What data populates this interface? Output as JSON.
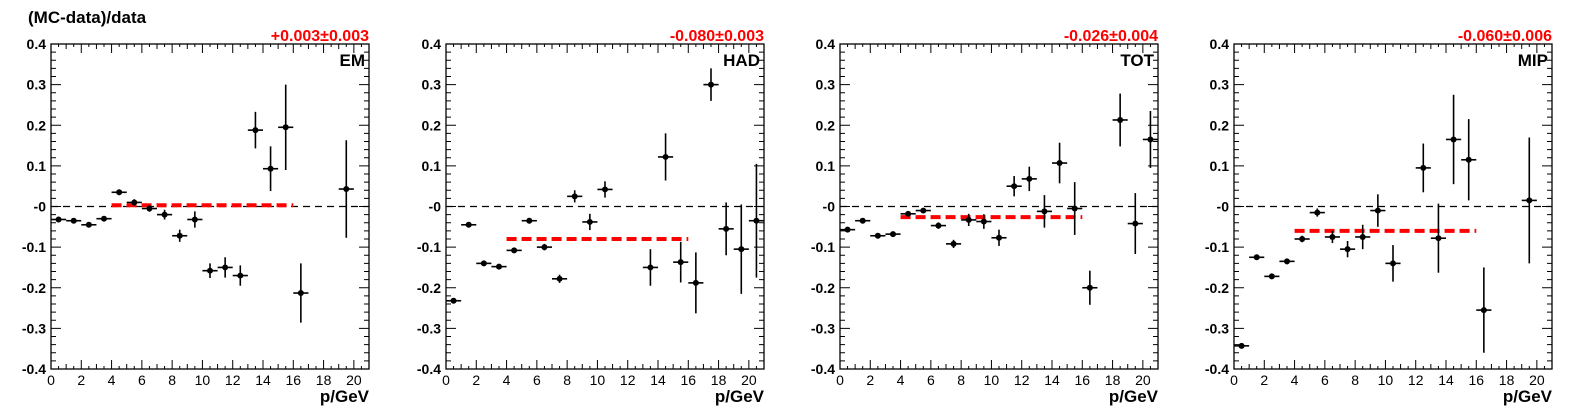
{
  "figure": {
    "ylabel": "(MC-data)/data"
  },
  "chart_data": [
    {
      "type": "scatter",
      "label": "EM",
      "fit_label": "+0.003±0.003",
      "fit": {
        "value": 0.003,
        "x_range": [
          4,
          16
        ]
      },
      "xlabel": "p/GeV",
      "xlim": [
        0,
        21
      ],
      "ylim": [
        -0.4,
        0.4
      ],
      "x_ticks": [
        0,
        2,
        4,
        6,
        8,
        10,
        12,
        14,
        16,
        18,
        20
      ],
      "y_ticks": [
        -0.4,
        -0.3,
        -0.2,
        -0.1,
        0,
        0.1,
        0.2,
        0.3,
        0.4
      ],
      "y_tick_labels": [
        "-0.4",
        "-0.3",
        "-0.2",
        "-0.1",
        "-0",
        "0.1",
        "0.2",
        "0.3",
        "0.4"
      ],
      "reference_line": 0,
      "points": [
        {
          "x": 0.5,
          "y": -0.032,
          "err": 0.005
        },
        {
          "x": 1.5,
          "y": -0.035,
          "err": 0.005
        },
        {
          "x": 2.5,
          "y": -0.045,
          "err": 0.006
        },
        {
          "x": 3.5,
          "y": -0.03,
          "err": 0.006
        },
        {
          "x": 4.5,
          "y": 0.035,
          "err": 0.007
        },
        {
          "x": 5.5,
          "y": 0.01,
          "err": 0.008
        },
        {
          "x": 6.5,
          "y": -0.005,
          "err": 0.008
        },
        {
          "x": 7.5,
          "y": -0.02,
          "err": 0.012
        },
        {
          "x": 8.5,
          "y": -0.072,
          "err": 0.015
        },
        {
          "x": 9.5,
          "y": -0.032,
          "err": 0.02
        },
        {
          "x": 10.5,
          "y": -0.158,
          "err": 0.018
        },
        {
          "x": 11.5,
          "y": -0.15,
          "err": 0.025
        },
        {
          "x": 12.5,
          "y": -0.17,
          "err": 0.025
        },
        {
          "x": 13.5,
          "y": 0.188,
          "err": 0.045
        },
        {
          "x": 14.5,
          "y": 0.093,
          "err": 0.055
        },
        {
          "x": 15.5,
          "y": 0.195,
          "err": 0.105
        },
        {
          "x": 16.5,
          "y": -0.213,
          "err": 0.073
        },
        {
          "x": 19.5,
          "y": 0.043,
          "err": 0.12
        }
      ]
    },
    {
      "type": "scatter",
      "label": "HAD",
      "fit_label": "-0.080±0.003",
      "fit": {
        "value": -0.08,
        "x_range": [
          4,
          16
        ]
      },
      "xlabel": "p/GeV",
      "xlim": [
        0,
        21
      ],
      "ylim": [
        -0.4,
        0.4
      ],
      "x_ticks": [
        0,
        2,
        4,
        6,
        8,
        10,
        12,
        14,
        16,
        18,
        20
      ],
      "y_ticks": [
        -0.4,
        -0.3,
        -0.2,
        -0.1,
        0,
        0.1,
        0.2,
        0.3,
        0.4
      ],
      "y_tick_labels": [
        "-0.4",
        "-0.3",
        "-0.2",
        "-0.1",
        "-0",
        "0.1",
        "0.2",
        "0.3",
        "0.4"
      ],
      "reference_line": 0,
      "points": [
        {
          "x": 0.5,
          "y": -0.232,
          "err": 0.006
        },
        {
          "x": 1.5,
          "y": -0.045,
          "err": 0.005
        },
        {
          "x": 2.5,
          "y": -0.14,
          "err": 0.005
        },
        {
          "x": 3.5,
          "y": -0.148,
          "err": 0.006
        },
        {
          "x": 4.5,
          "y": -0.108,
          "err": 0.006
        },
        {
          "x": 5.5,
          "y": -0.035,
          "err": 0.007
        },
        {
          "x": 6.5,
          "y": -0.1,
          "err": 0.008
        },
        {
          "x": 7.5,
          "y": -0.178,
          "err": 0.01
        },
        {
          "x": 8.5,
          "y": 0.025,
          "err": 0.015
        },
        {
          "x": 9.5,
          "y": -0.038,
          "err": 0.02
        },
        {
          "x": 10.5,
          "y": 0.042,
          "err": 0.02
        },
        {
          "x": 13.5,
          "y": -0.15,
          "err": 0.045
        },
        {
          "x": 14.5,
          "y": 0.122,
          "err": 0.058
        },
        {
          "x": 15.5,
          "y": -0.137,
          "err": 0.05
        },
        {
          "x": 16.5,
          "y": -0.188,
          "err": 0.075
        },
        {
          "x": 17.5,
          "y": 0.3,
          "err": 0.04
        },
        {
          "x": 18.5,
          "y": -0.055,
          "err": 0.065
        },
        {
          "x": 19.5,
          "y": -0.105,
          "err": 0.11
        },
        {
          "x": 20.5,
          "y": -0.035,
          "err": 0.14
        }
      ]
    },
    {
      "type": "scatter",
      "label": "TOT",
      "fit_label": "-0.026±0.004",
      "fit": {
        "value": -0.026,
        "x_range": [
          4,
          16
        ]
      },
      "xlabel": "p/GeV",
      "xlim": [
        0,
        21
      ],
      "ylim": [
        -0.4,
        0.4
      ],
      "x_ticks": [
        0,
        2,
        4,
        6,
        8,
        10,
        12,
        14,
        16,
        18,
        20
      ],
      "y_ticks": [
        -0.4,
        -0.3,
        -0.2,
        -0.1,
        0,
        0.1,
        0.2,
        0.3,
        0.4
      ],
      "y_tick_labels": [
        "-0.4",
        "-0.3",
        "-0.2",
        "-0.1",
        "-0",
        "0.1",
        "0.2",
        "0.3",
        "0.4"
      ],
      "reference_line": 0,
      "points": [
        {
          "x": 0.5,
          "y": -0.057,
          "err": 0.005
        },
        {
          "x": 1.5,
          "y": -0.035,
          "err": 0.005
        },
        {
          "x": 2.5,
          "y": -0.072,
          "err": 0.005
        },
        {
          "x": 3.5,
          "y": -0.068,
          "err": 0.005
        },
        {
          "x": 4.5,
          "y": -0.018,
          "err": 0.006
        },
        {
          "x": 5.5,
          "y": -0.01,
          "err": 0.006
        },
        {
          "x": 6.5,
          "y": -0.047,
          "err": 0.008
        },
        {
          "x": 7.5,
          "y": -0.092,
          "err": 0.01
        },
        {
          "x": 8.5,
          "y": -0.033,
          "err": 0.015
        },
        {
          "x": 9.5,
          "y": -0.037,
          "err": 0.018
        },
        {
          "x": 10.5,
          "y": -0.077,
          "err": 0.02
        },
        {
          "x": 11.5,
          "y": 0.05,
          "err": 0.025
        },
        {
          "x": 12.5,
          "y": 0.068,
          "err": 0.03
        },
        {
          "x": 13.5,
          "y": -0.012,
          "err": 0.04
        },
        {
          "x": 14.5,
          "y": 0.107,
          "err": 0.05
        },
        {
          "x": 15.5,
          "y": -0.005,
          "err": 0.065
        },
        {
          "x": 16.5,
          "y": -0.2,
          "err": 0.042
        },
        {
          "x": 18.5,
          "y": 0.213,
          "err": 0.065
        },
        {
          "x": 19.5,
          "y": -0.042,
          "err": 0.075
        },
        {
          "x": 20.5,
          "y": 0.165,
          "err": 0.07
        }
      ]
    },
    {
      "type": "scatter",
      "label": "MIP",
      "fit_label": "-0.060±0.006",
      "fit": {
        "value": -0.06,
        "x_range": [
          4,
          16
        ]
      },
      "xlabel": "p/GeV",
      "xlim": [
        0,
        21
      ],
      "ylim": [
        -0.4,
        0.4
      ],
      "x_ticks": [
        0,
        2,
        4,
        6,
        8,
        10,
        12,
        14,
        16,
        18,
        20
      ],
      "y_ticks": [
        -0.4,
        -0.3,
        -0.2,
        -0.1,
        0,
        0.1,
        0.2,
        0.3,
        0.4
      ],
      "y_tick_labels": [
        "-0.4",
        "-0.3",
        "-0.2",
        "-0.1",
        "-0",
        "0.1",
        "0.2",
        "0.3",
        "0.4"
      ],
      "reference_line": 0,
      "points": [
        {
          "x": 0.5,
          "y": -0.343,
          "err": 0.006
        },
        {
          "x": 1.5,
          "y": -0.125,
          "err": 0.005
        },
        {
          "x": 2.5,
          "y": -0.172,
          "err": 0.006
        },
        {
          "x": 3.5,
          "y": -0.135,
          "err": 0.007
        },
        {
          "x": 4.5,
          "y": -0.08,
          "err": 0.008
        },
        {
          "x": 5.5,
          "y": -0.015,
          "err": 0.01
        },
        {
          "x": 6.5,
          "y": -0.075,
          "err": 0.015
        },
        {
          "x": 7.5,
          "y": -0.105,
          "err": 0.02
        },
        {
          "x": 8.5,
          "y": -0.075,
          "err": 0.03
        },
        {
          "x": 9.5,
          "y": -0.01,
          "err": 0.04
        },
        {
          "x": 10.5,
          "y": -0.14,
          "err": 0.045
        },
        {
          "x": 12.5,
          "y": 0.095,
          "err": 0.06
        },
        {
          "x": 13.5,
          "y": -0.078,
          "err": 0.085
        },
        {
          "x": 14.5,
          "y": 0.165,
          "err": 0.11
        },
        {
          "x": 15.5,
          "y": 0.115,
          "err": 0.1
        },
        {
          "x": 16.5,
          "y": -0.255,
          "err": 0.105
        },
        {
          "x": 19.5,
          "y": 0.015,
          "err": 0.155
        }
      ]
    }
  ]
}
